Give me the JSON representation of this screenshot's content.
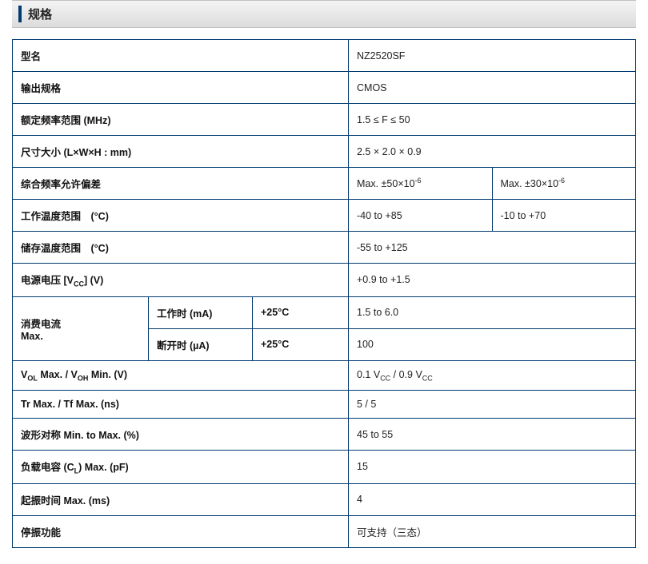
{
  "header": {
    "title": "规格"
  },
  "colors": {
    "border": "#003a70",
    "header_bg_top": "#f4f4f4",
    "header_bg_bottom": "#dcdcdc",
    "header_bar": "#003a70",
    "background": "#ffffff",
    "text": "#222222"
  },
  "rows": {
    "model": {
      "label": "型名",
      "value": "NZ2520SF"
    },
    "output": {
      "label": "输出规格",
      "value": "CMOS"
    },
    "freq_range": {
      "label": "额定频率范围 (MHz)",
      "value": "1.5 ≤ F ≤ 50"
    },
    "dimensions": {
      "label": "尺寸大小 (L×W×H : mm)",
      "value": "2.5 × 2.0 × 0.9"
    },
    "freq_tol": {
      "label": "综合频率允许偏差",
      "value_a_html": "Max. ±50×10<sup>-6</sup>",
      "value_b_html": "Max. ±30×10<sup>-6</sup>"
    },
    "op_temp": {
      "label": "工作温度范围　(°C)",
      "value_a": "-40 to +85",
      "value_b": "-10 to +70"
    },
    "storage_temp": {
      "label": "储存温度范围　(°C)",
      "value": "-55 to +125"
    },
    "vcc": {
      "label_html": "电源电压 [V<sub>CC</sub>] (V)",
      "value": "+0.9 to +1.5"
    },
    "current": {
      "group_label": "消费电流\nMax.",
      "on": {
        "label": "工作时 (mA)",
        "cond": "+25°C",
        "value": "1.5 to 6.0"
      },
      "off": {
        "label": "断开时 (µA)",
        "cond": "+25°C",
        "value": "100"
      }
    },
    "vol_voh": {
      "label_html": "V<sub>OL</sub> Max. / V<sub>OH</sub> Min. (V)",
      "value_html": "0.1 V<sub>CC</sub> / 0.9 V<sub>CC</sub>"
    },
    "tr_tf": {
      "label": "Tr Max. / Tf Max. (ns)",
      "value": "5 / 5"
    },
    "symmetry": {
      "label": "波形对称 Min. to Max. (%)",
      "value": "45 to 55"
    },
    "load_cap": {
      "label_html": "负载电容 (C<sub>L</sub>) Max. (pF)",
      "value": "15"
    },
    "startup": {
      "label": "起振时间 Max. (ms)",
      "value": "4"
    },
    "standby": {
      "label": "停振功能",
      "value": "可支持（三态）"
    }
  }
}
